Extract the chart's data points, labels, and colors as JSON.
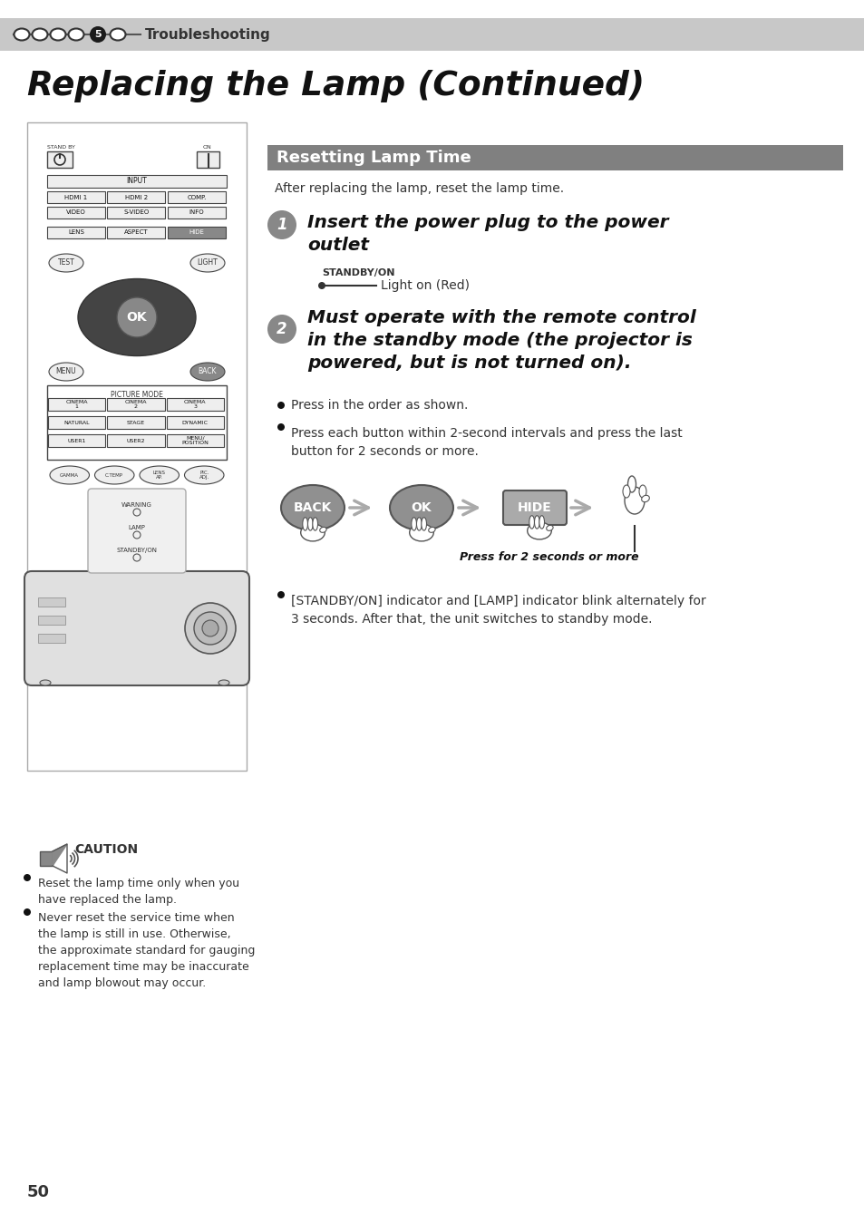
{
  "bg_color": "#ffffff",
  "header_bg": "#c8c8c8",
  "header_text": "Troubleshooting",
  "main_title": "Replacing the Lamp (Continued)",
  "section_title": "Resetting Lamp Time",
  "section_bg": "#808080",
  "section_text_color": "#ffffff",
  "subtitle_text": "After replacing the lamp, reset the lamp time.",
  "step1_title": "Insert the power plug to the power\noutlet",
  "step1_label": "STANDBY/ON",
  "step1_annotation": "Light on (Red)",
  "step2_title": "Must operate with the remote control\nin the standby mode (the projector is\npowered, but is not turned on).",
  "bullet1": "Press in the order as shown.",
  "bullet2": "Press each button within 2-second intervals and press the last\nbutton for 2 seconds or more.",
  "press_note": "Press for 2 seconds or more",
  "bullet3": "[STANDBY/ON] indicator and [LAMP] indicator blink alternately for\n3 seconds. After that, the unit switches to standby mode.",
  "caution_title": "CAUTION",
  "caution1": "Reset the lamp time only when you\nhave replaced the lamp.",
  "caution2": "Never reset the service time when\nthe lamp is still in use. Otherwise,\nthe approximate standard for gauging\nreplacement time may be inaccurate\nand lamp blowout may occur.",
  "page_number": "50",
  "button_gray": "#909090",
  "button_hide_color": "#a0a0a0"
}
